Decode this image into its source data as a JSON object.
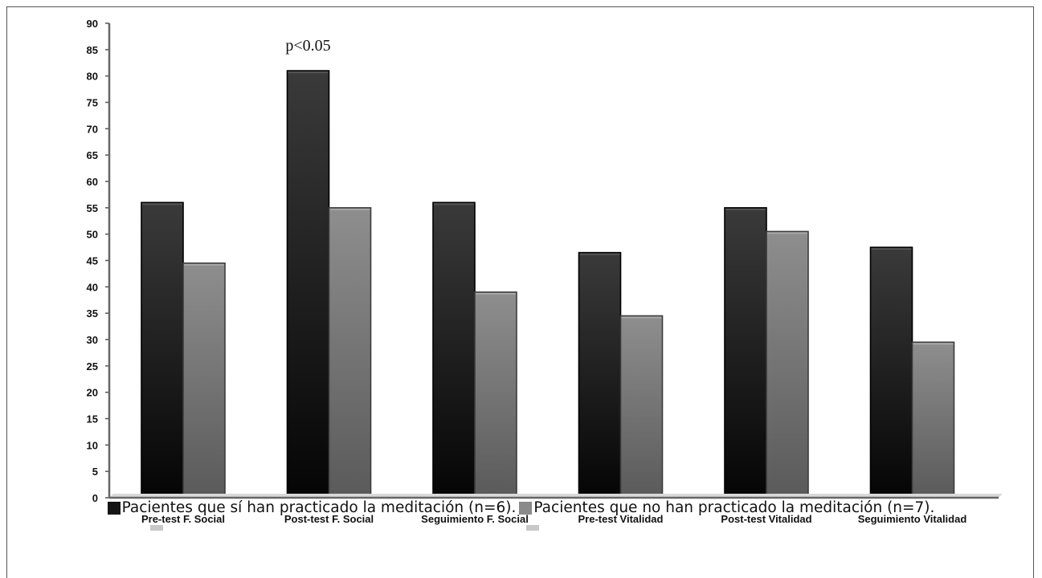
{
  "chart_data": {
    "type": "bar",
    "categories": [
      "Pre-test F. Social",
      "Post-test F. Social",
      "Seguimiento F. Social",
      "Pre-test Vitalidad",
      "Post-test Vitalidad",
      "Seguimiento Vitalidad"
    ],
    "series": [
      {
        "name": "Pacientes que sí han practicado la meditación (n=6).",
        "values": [
          56,
          81,
          56,
          46.5,
          55,
          47.5
        ],
        "color": "#1e1e1e"
      },
      {
        "name": "Pacientes que no han practicado la meditación (n=7).",
        "values": [
          44.5,
          55,
          39,
          34.5,
          50.5,
          29.5
        ],
        "color": "#828282"
      }
    ],
    "ylim": [
      0,
      90
    ],
    "yticks": [
      0,
      5,
      10,
      15,
      20,
      25,
      30,
      35,
      40,
      45,
      50,
      55,
      60,
      65,
      70,
      75,
      80,
      85,
      90
    ],
    "annotations": [
      {
        "text": "p<0.05",
        "category_index": 1
      }
    ],
    "grid": false,
    "legend_position": "bottom",
    "title": "",
    "xlabel": "",
    "ylabel": ""
  }
}
